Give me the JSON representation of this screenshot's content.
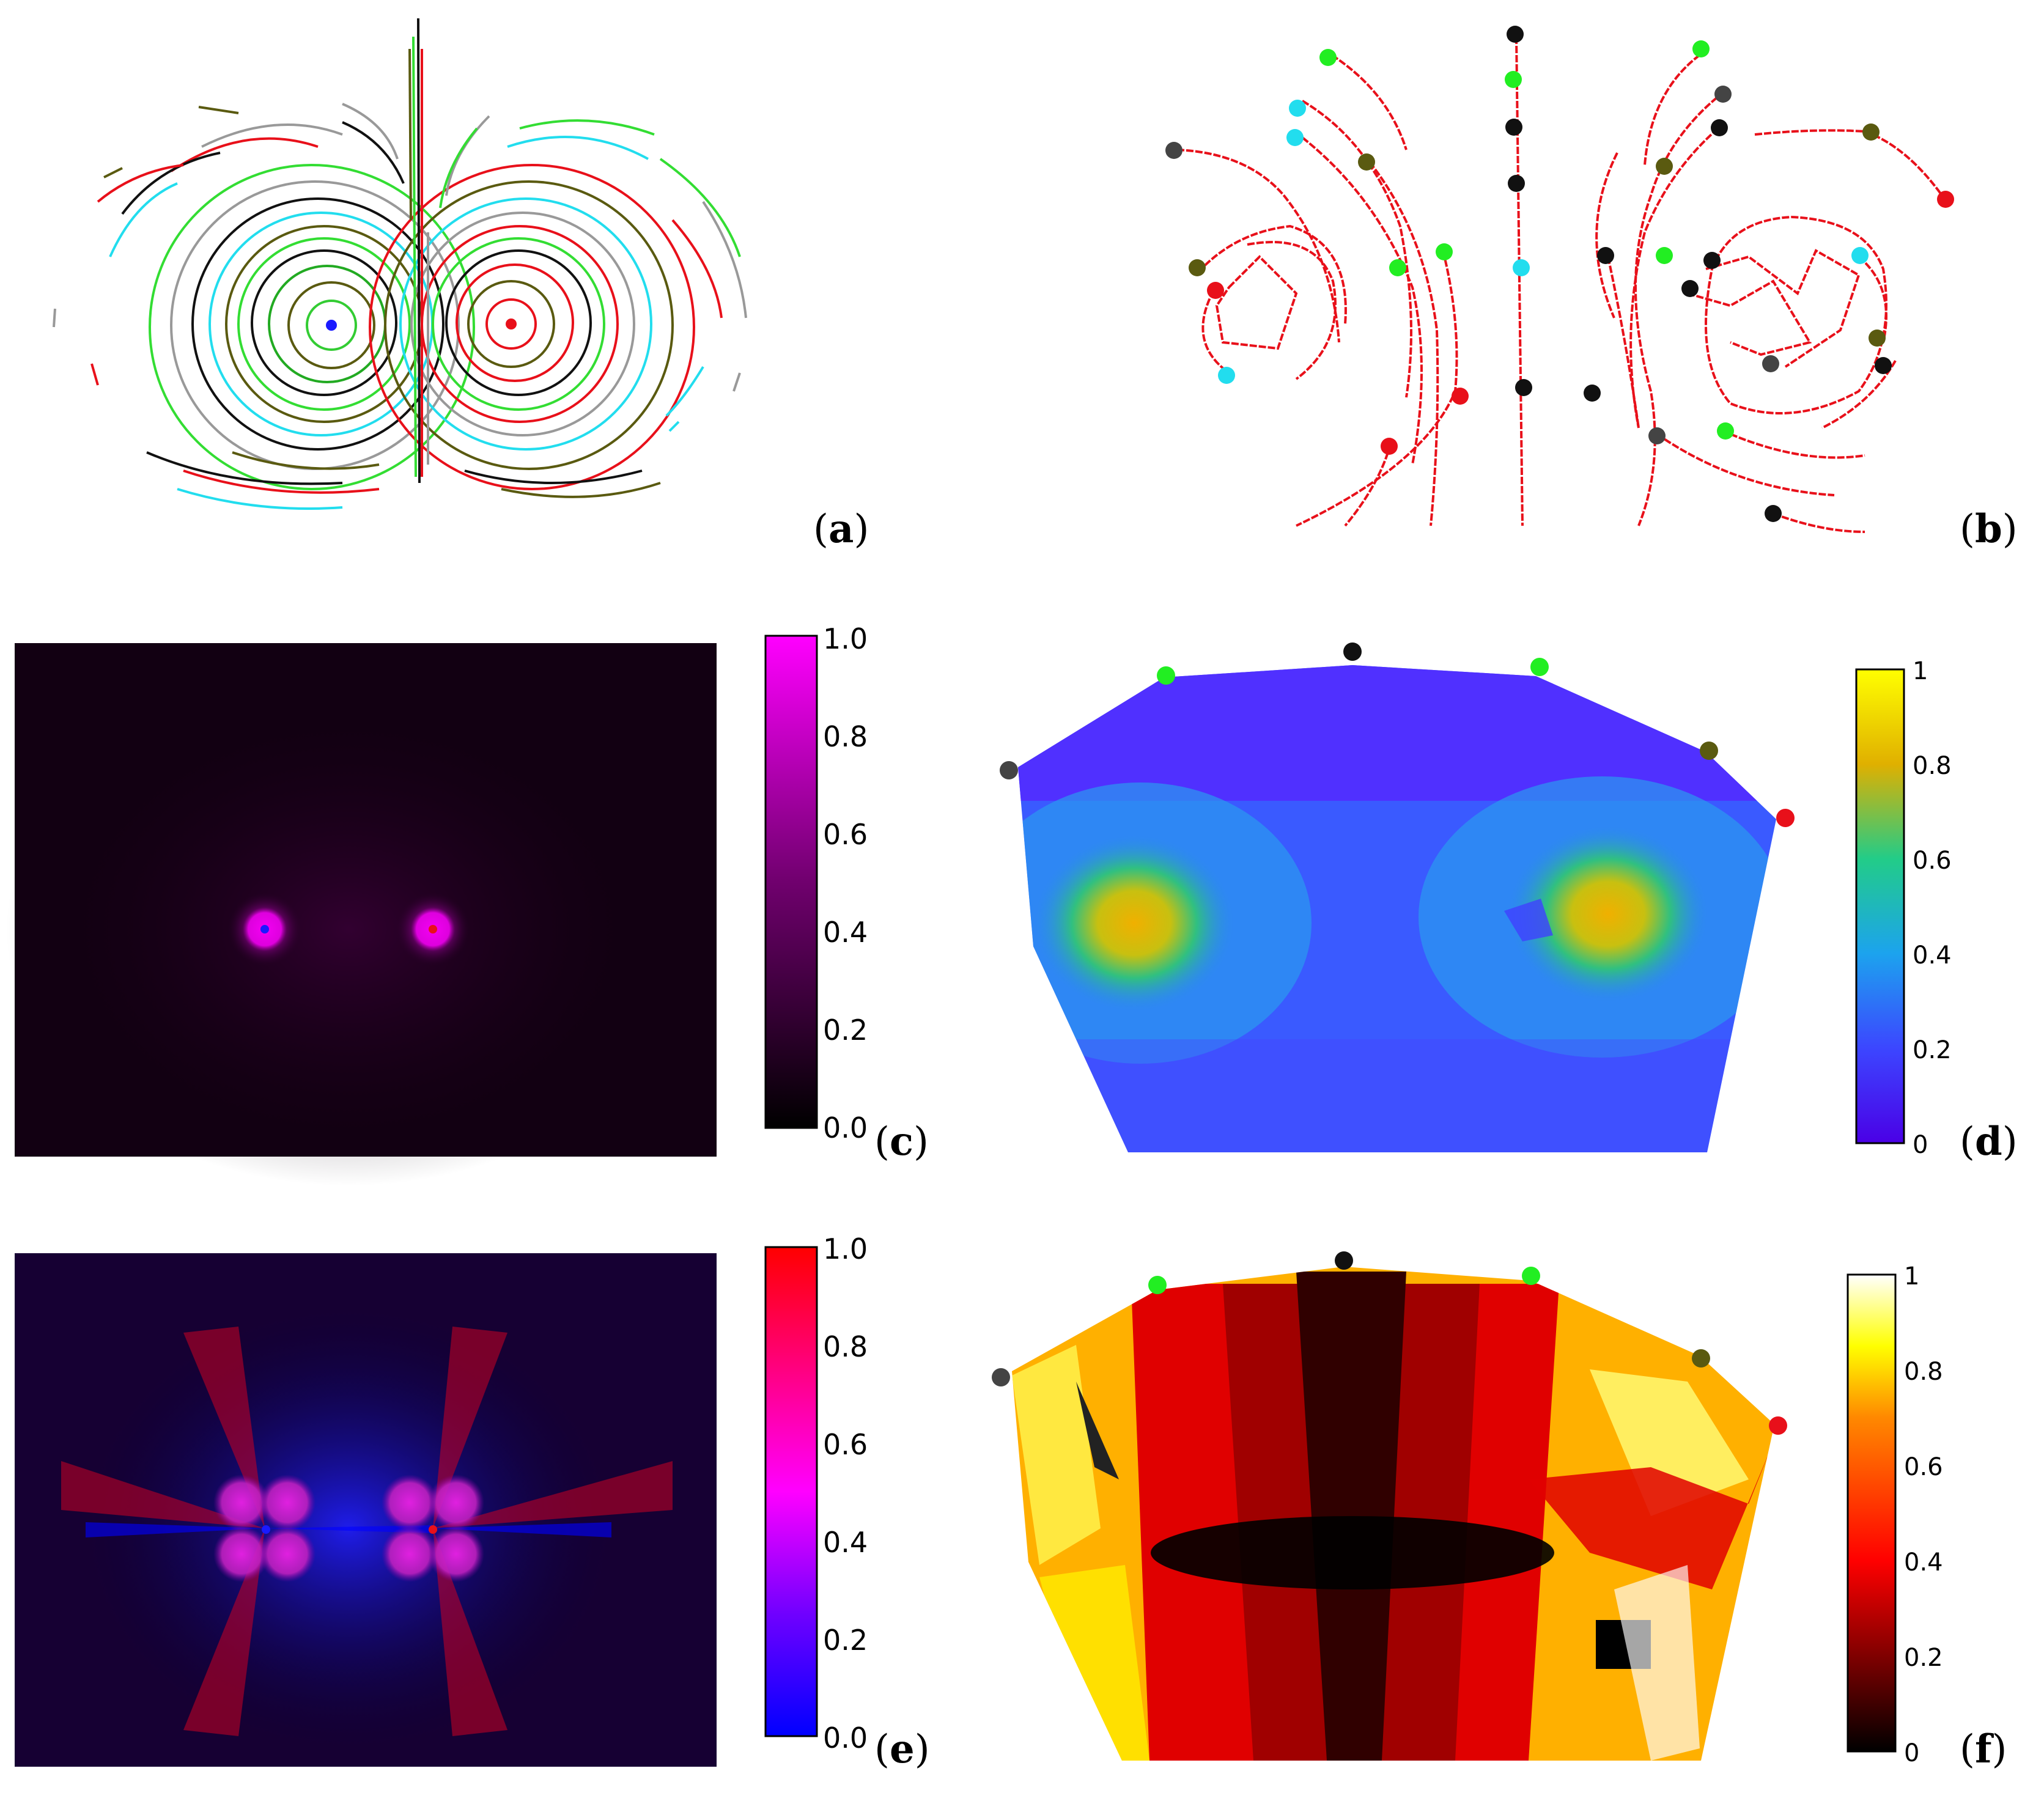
{
  "panels": {
    "a": {
      "label": "a"
    },
    "b": {
      "label": "b"
    },
    "c": {
      "label": "c",
      "colorbar_ticks": [
        "1.0",
        "0.8",
        "0.6",
        "0.4",
        "0.2",
        "0.0"
      ]
    },
    "d": {
      "label": "d",
      "colorbar_ticks": [
        "1",
        "0.8",
        "0.6",
        "0.4",
        "0.2",
        "0"
      ]
    },
    "e": {
      "label": "e",
      "colorbar_ticks": [
        "1.0",
        "0.8",
        "0.6",
        "0.4",
        "0.2",
        "0.0"
      ]
    },
    "f": {
      "label": "f",
      "colorbar_ticks": [
        "1",
        "0.8",
        "0.6",
        "0.4",
        "0.2",
        "0"
      ]
    }
  },
  "colors": {
    "trajectory_red": "#e8101a",
    "source_blue": "#1a1aff",
    "sink_red": "#e8101a",
    "marker_green": "#22ee22",
    "marker_cyan": "#22ddee",
    "marker_olive": "#5a5a10",
    "marker_gray": "#444444",
    "marker_black": "#111111"
  }
}
